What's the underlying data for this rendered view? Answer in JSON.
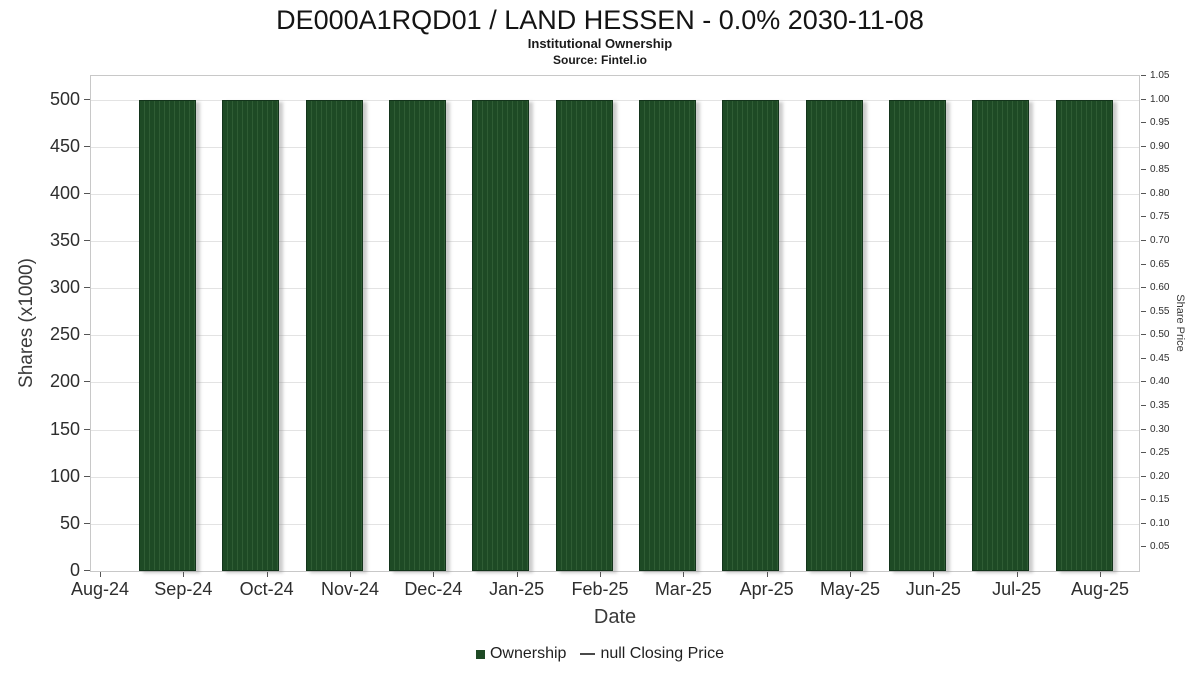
{
  "chart_data": {
    "type": "bar",
    "title": "DE000A1RQD01 / LAND HESSEN - 0.0% 2030-11-08",
    "subtitle": "Institutional Ownership",
    "source": "Source: Fintel.io",
    "xlabel": "Date",
    "ylabel_left": "Shares (x1000)",
    "ylabel_right": "Share Price",
    "x_tick_labels": [
      "Aug-24",
      "Sep-24",
      "Oct-24",
      "Nov-24",
      "Dec-24",
      "Jan-25",
      "Feb-25",
      "Mar-25",
      "Apr-25",
      "May-25",
      "Jun-25",
      "Jul-25",
      "Aug-25"
    ],
    "categories": [
      "Sep-24",
      "Oct-24",
      "Nov-24",
      "Dec-24",
      "Jan-25",
      "Feb-25",
      "Mar-25",
      "Apr-25",
      "May-25",
      "Jun-25",
      "Jul-25",
      "Aug-25"
    ],
    "values": [
      500,
      500,
      500,
      500,
      500,
      500,
      500,
      500,
      500,
      500,
      500,
      500
    ],
    "series": [
      {
        "name": "Ownership",
        "values": [
          500,
          500,
          500,
          500,
          500,
          500,
          500,
          500,
          500,
          500,
          500,
          500
        ]
      }
    ],
    "ylim_left": [
      0,
      525
    ],
    "left_ticks": [
      0,
      50,
      100,
      150,
      200,
      250,
      300,
      350,
      400,
      450,
      500
    ],
    "ylim_right": [
      0,
      1.05
    ],
    "right_ticks": [
      0.05,
      0.1,
      0.15,
      0.2,
      0.25,
      0.3,
      0.35,
      0.4,
      0.45,
      0.5,
      0.55,
      0.6,
      0.65,
      0.7,
      0.75,
      0.8,
      0.85,
      0.9,
      0.95,
      1.0,
      1.05
    ],
    "grid": true,
    "legend_position": "bottom",
    "bar_color": "#1e4a25",
    "bar_stripe_color": "#2f5c34",
    "bar_border_color": "#13341b",
    "legend": [
      {
        "label": "Ownership",
        "marker": "square",
        "color": "#1e4a25"
      },
      {
        "label": "null Closing Price",
        "marker": "line",
        "color": "#4a4a4a"
      }
    ]
  }
}
